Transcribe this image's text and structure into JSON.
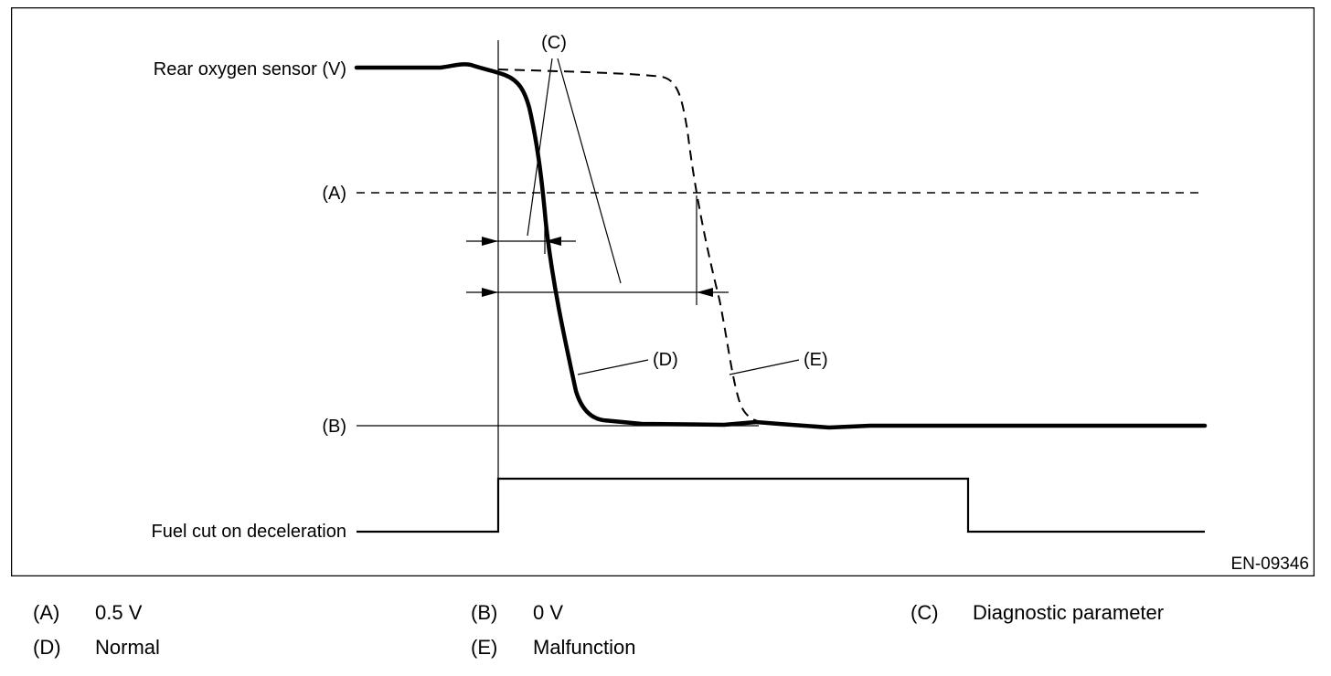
{
  "diagram": {
    "labels": {
      "rear_sensor": "Rear oxygen sensor (V)",
      "level_a": "(A)",
      "level_b": "(B)",
      "fuel_cut": "Fuel cut on deceleration",
      "callout_c": "(C)",
      "callout_d": "(D)",
      "callout_e": "(E)",
      "figure_code": "EN-09346"
    },
    "line_styles": {
      "normal": "solid thick",
      "malfunction": "dashed",
      "level_a": "dashed"
    }
  },
  "legend": {
    "items": [
      {
        "key": "(A)",
        "text": "0.5 V"
      },
      {
        "key": "(B)",
        "text": "0 V"
      },
      {
        "key": "(C)",
        "text": "Diagnostic parameter"
      },
      {
        "key": "(D)",
        "text": "Normal"
      },
      {
        "key": "(E)",
        "text": "Malfunction"
      }
    ]
  }
}
